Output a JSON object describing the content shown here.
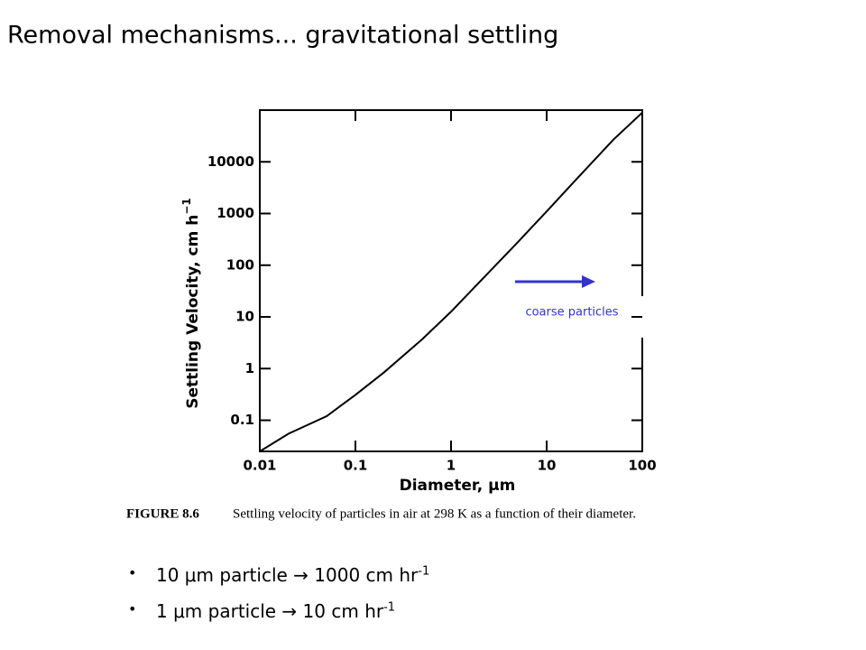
{
  "title": "Removal mechanisms... gravitational settling",
  "chart_data": {
    "type": "line",
    "xlabel": "Diameter, μm",
    "ylabel": "Settling Velocity, cm h",
    "ylabel_superscript": "−1",
    "xscale": "log",
    "yscale": "log",
    "xlim": [
      0.01,
      100
    ],
    "ylim": [
      0.025,
      100000
    ],
    "xticks": [
      0.01,
      0.1,
      1,
      10,
      100
    ],
    "yticks": [
      0.1,
      1,
      10,
      100,
      1000,
      10000
    ],
    "series": [
      {
        "color": "#000000",
        "x": [
          0.01,
          0.02,
          0.05,
          0.1,
          0.2,
          0.5,
          1,
          2,
          5,
          10,
          20,
          50,
          100
        ],
        "values": [
          0.025,
          0.055,
          0.12,
          0.31,
          0.85,
          3.7,
          12.6,
          48,
          280,
          1100,
          4400,
          27000,
          89600
        ]
      }
    ],
    "annotation": {
      "text": "coarse particles",
      "color": "#3333cc"
    }
  },
  "caption": {
    "label": "FIGURE 8.6",
    "text": "Settling velocity of particles in air at 298 K as a function of their diameter."
  },
  "bullets": [
    {
      "text": "10 μm particle → 1000 cm hr",
      "superscript": "-1"
    },
    {
      "text": "1 μm particle → 10 cm hr",
      "superscript": "-1"
    }
  ]
}
